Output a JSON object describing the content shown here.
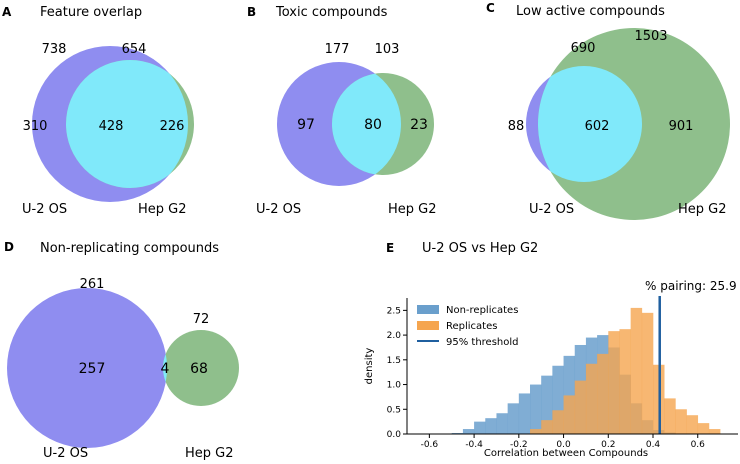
{
  "panels": {
    "a": {
      "letter": "A",
      "title": "Feature overlap"
    },
    "b": {
      "letter": "B",
      "title": "Toxic compounds"
    },
    "c": {
      "letter": "C",
      "title": "Low active compounds"
    },
    "d": {
      "letter": "D",
      "title": "Non-replicating compounds"
    },
    "e": {
      "letter": "E",
      "title": "U-2 OS vs Hep G2"
    }
  },
  "chart_data": [
    {
      "type": "venn",
      "panel": "A",
      "title": "Feature overlap",
      "set_labels": [
        "U-2 OS",
        "Hep G2"
      ],
      "set_totals": [
        "738",
        "654"
      ],
      "region_values": {
        "left_only": "310",
        "overlap": "428",
        "right_only": "226"
      }
    },
    {
      "type": "venn",
      "panel": "B",
      "title": "Toxic compounds",
      "set_labels": [
        "U-2 OS",
        "Hep G2"
      ],
      "set_totals": [
        "177",
        "103"
      ],
      "region_values": {
        "left_only": "97",
        "overlap": "80",
        "right_only": "23"
      }
    },
    {
      "type": "venn",
      "panel": "C",
      "title": "Low active compounds",
      "set_labels": [
        "U-2 OS",
        "Hep G2"
      ],
      "set_totals": [
        "690",
        "1503"
      ],
      "region_values": {
        "left_only": "88",
        "overlap": "602",
        "right_only": "901"
      }
    },
    {
      "type": "venn",
      "panel": "D",
      "title": "Non-replicating compounds",
      "set_labels": [
        "U-2 OS",
        "Hep G2"
      ],
      "set_totals": [
        "261",
        "72"
      ],
      "region_values": {
        "left_only": "257",
        "overlap": "4",
        "right_only": "68"
      }
    },
    {
      "type": "histogram",
      "panel": "E",
      "title": "U-2 OS vs Hep G2",
      "annotation": "% pairing: 25.9",
      "xlabel": "Correlation between Compounds",
      "ylabel": "density",
      "xlim": [
        -0.7,
        0.78
      ],
      "ylim": [
        0,
        2.75
      ],
      "xticks": [
        "-0.6",
        "-0.4",
        "-0.2",
        "0.0",
        "0.2",
        "0.4",
        "0.6"
      ],
      "xtick_values": [
        -0.6,
        -0.4,
        -0.2,
        0.0,
        0.2,
        0.4,
        0.6
      ],
      "yticks": [
        "0.0",
        "0.5",
        "1.0",
        "1.5",
        "2.0",
        "2.5"
      ],
      "ytick_values": [
        0.0,
        0.5,
        1.0,
        1.5,
        2.0,
        2.5
      ],
      "legend": [
        "Non-replicates",
        "Replicates",
        "95% threshold"
      ],
      "colors": {
        "non_replicates": "#6a9fcc",
        "replicates": "#f5a54f",
        "threshold": "#1f5f9f"
      },
      "bin_edges": [
        -0.6,
        -0.55,
        -0.5,
        -0.45,
        -0.4,
        -0.35,
        -0.3,
        -0.25,
        -0.2,
        -0.15,
        -0.1,
        -0.05,
        0.0,
        0.05,
        0.1,
        0.15,
        0.2,
        0.25,
        0.3,
        0.35,
        0.4,
        0.45,
        0.5,
        0.55,
        0.6,
        0.65,
        0.7
      ],
      "series": [
        {
          "name": "Non-replicates",
          "values": [
            0.01,
            0.01,
            0.02,
            0.1,
            0.25,
            0.32,
            0.42,
            0.62,
            0.82,
            1.0,
            1.18,
            1.38,
            1.58,
            1.8,
            1.95,
            2.0,
            1.75,
            1.2,
            0.62,
            0.28,
            0.08,
            0.03,
            0.01,
            0.0,
            0.0,
            0.0
          ]
        },
        {
          "name": "Replicates",
          "values": [
            0,
            0,
            0,
            0,
            0,
            0,
            0,
            0,
            0,
            0.1,
            0.28,
            0.48,
            0.78,
            1.08,
            1.42,
            1.62,
            2.08,
            2.12,
            2.55,
            2.45,
            1.4,
            0.72,
            0.5,
            0.38,
            0.22,
            0.1
          ]
        }
      ],
      "threshold": 0.43
    }
  ]
}
